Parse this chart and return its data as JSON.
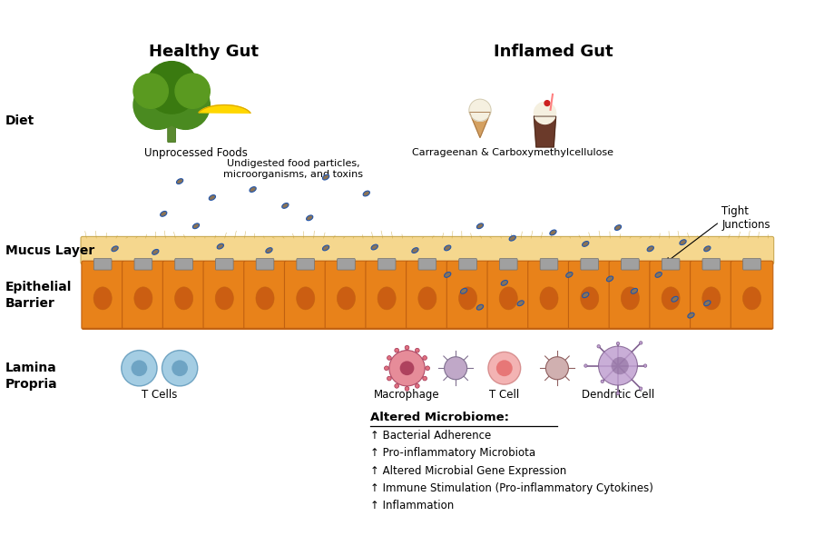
{
  "title": "",
  "fig_width": 8.97,
  "fig_height": 6.12,
  "background_color": "#ffffff",
  "healthy_gut_label": "Healthy Gut",
  "inflamed_gut_label": "Inflamed Gut",
  "diet_label": "Diet",
  "mucus_layer_label": "Mucus Layer",
  "epithelial_barrier_label": "Epithelial\nBarrier",
  "lamina_propria_label": "Lamina\nPropria",
  "unprocessed_foods_label": "Unprocessed Foods",
  "carrageenan_label": "Carrageenan & Carboxymethylcellulose",
  "particles_label": "Undigested food particles,\nmicroorganisms, and toxins",
  "tight_junctions_label": "Tight\nJunctions",
  "t_cells_label": "T Cells",
  "macrophage_label": "Macrophage",
  "t_cell_label": "T Cell",
  "dendritic_cell_label": "Dendritic Cell",
  "altered_microbiome_title": "Altered Microbiome:",
  "altered_microbiome_items": [
    "↑ Bacterial Adherence",
    "↑ Pro-inflammatory Microbiota",
    "↑ Altered Microbial Gene Expression",
    "↑ Immune Stimulation (Pro-inflammatory Cytokines)",
    "↑ Inflammation"
  ],
  "mucus_color": "#F5D78E",
  "epithelial_color": "#E8821A",
  "epithelial_dark": "#C06010",
  "cell_oval_color": "#C05010",
  "junction_color": "#A0A0A0",
  "particle_fill": "#8B7355",
  "particle_edge": "#2255AA",
  "t_cell_blue": "#7EB8D8",
  "t_cell_dark_blue": "#4A8AB0",
  "macrophage_pink": "#E07080",
  "macrophage_dark": "#A03050",
  "t_cell_light": "#F0A0A0",
  "dendritic_purple": "#C0A0D0",
  "dendritic_dark": "#806090"
}
